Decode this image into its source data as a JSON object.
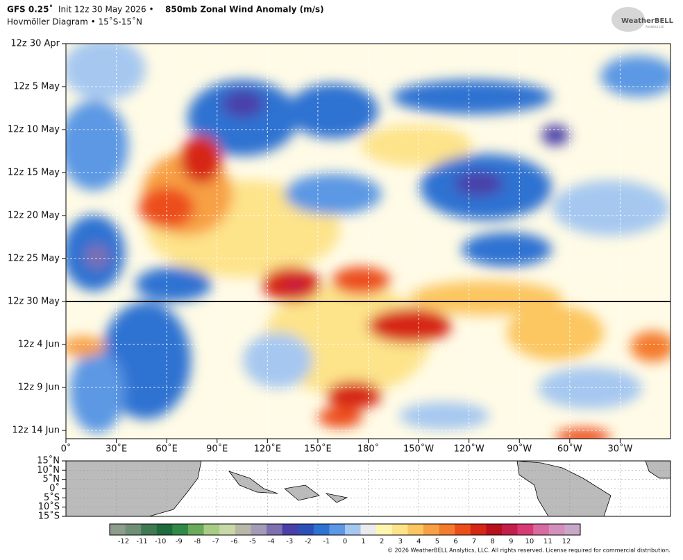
{
  "header": {
    "model": "GFS 0.25˚",
    "init": "Init 12z 30 May 2026 •",
    "field": "850mb Zonal Wind Anomaly (m/s)",
    "subtitle": "Hovmöller Diagram • 15˚S-15˚N"
  },
  "logo": {
    "name": "WeatherBELL",
    "sub": "Analytics LLC"
  },
  "time_labels": [
    "12z 30 Apr",
    "12z 5 May",
    "12z 10 May",
    "12z 15 May",
    "12z 20 May",
    "12z 25 May",
    "12z 30 May",
    "12z 4 Jun",
    "12z 9 Jun",
    "12z 14 Jun"
  ],
  "longitude_labels": [
    "0˚",
    "30˚E",
    "60˚E",
    "90˚E",
    "120˚E",
    "150˚E",
    "180˚",
    "150˚W",
    "120˚W",
    "90˚W",
    "60˚W",
    "30˚W"
  ],
  "latitude_labels": [
    "15˚N",
    "10˚N",
    "5˚N",
    "0˚",
    "5˚S",
    "10˚S",
    "15˚S"
  ],
  "colorbar": {
    "ticks": [
      -12,
      -11,
      -10,
      -9,
      -8,
      -7,
      -6,
      -5,
      -4,
      -3,
      -2,
      -1,
      0,
      1,
      2,
      3,
      4,
      5,
      6,
      7,
      8,
      9,
      10,
      11,
      12
    ],
    "colors": [
      "#8d9c8d",
      "#6f8f76",
      "#3f7a52",
      "#1e6b3d",
      "#2f8a48",
      "#6aaa5a",
      "#a9cc84",
      "#c8d9a8",
      "#b8b8a8",
      "#a39cb8",
      "#7e6fb0",
      "#4a3fa8",
      "#2f4fb8",
      "#2e72d2",
      "#5c98e4",
      "#a6c8f0",
      "#ebebeb",
      "#fff6b0",
      "#fde38a",
      "#fcc660",
      "#f8a044",
      "#f47a2c",
      "#ec4e1a",
      "#d62614",
      "#b8101c",
      "#c41e4a",
      "#d83a74",
      "#d86aa0",
      "#d490bc",
      "#c8a8c8"
    ]
  },
  "copyright": "© 2026 WeatherBELL Analytics, LLC. All rights reserved. License required for commercial distribution."
}
